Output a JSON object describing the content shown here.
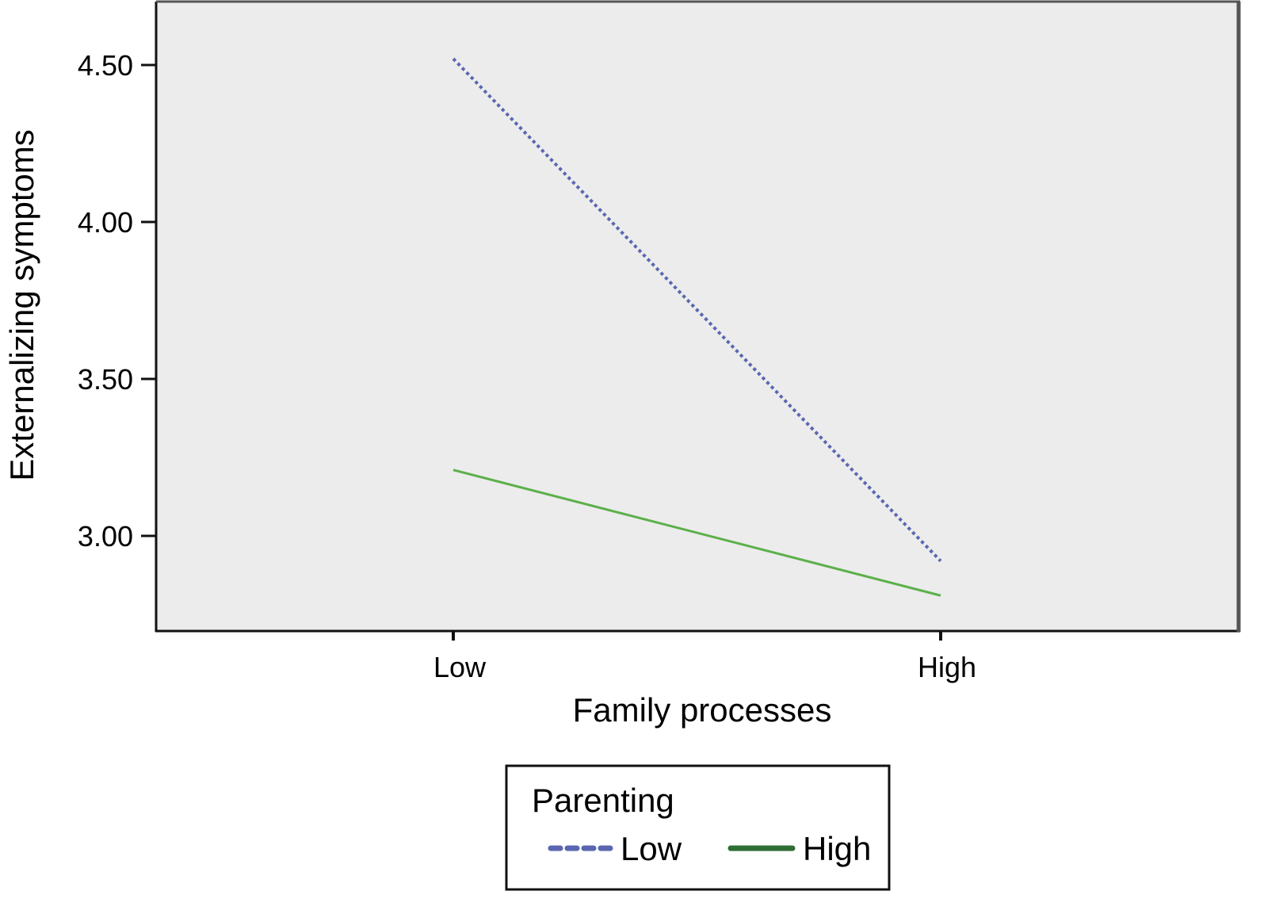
{
  "chart_data": {
    "type": "line",
    "title": "",
    "xlabel": "Family processes",
    "ylabel": "Externalizing symptoms",
    "categories": [
      "Low",
      "High"
    ],
    "yticks": [
      "3.00",
      "3.50",
      "4.00",
      "4.50"
    ],
    "ylim": [
      2.7,
      4.7
    ],
    "grid": false,
    "legend": {
      "title": "Parenting",
      "position": "bottom"
    },
    "series": [
      {
        "name": "Low",
        "style": "dotted",
        "color": "#5a67b0",
        "values": [
          4.52,
          2.92
        ]
      },
      {
        "name": "High",
        "style": "solid",
        "color": "#5cb04a",
        "legend_color": "#2e6e35",
        "values": [
          3.21,
          2.81
        ]
      }
    ]
  },
  "colors": {
    "plot_background": "#ececec",
    "frame": "#111111"
  }
}
